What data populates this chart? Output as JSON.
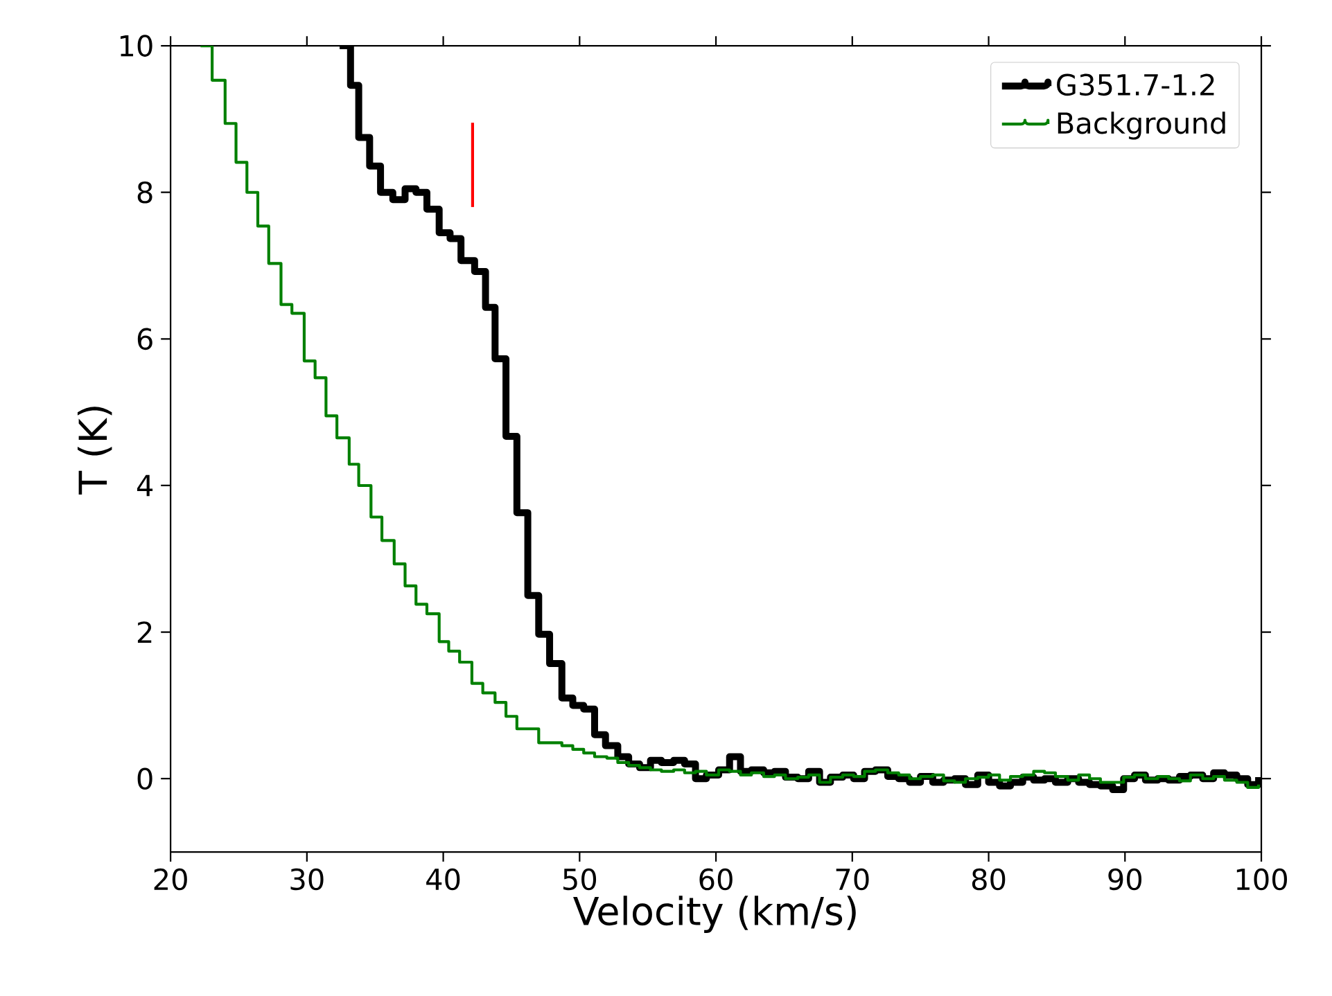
{
  "chart_data": {
    "type": "step",
    "xlabel": "Velocity (km/s)",
    "ylabel": "T (K)",
    "xlim": [
      20,
      100
    ],
    "ylim": [
      -1,
      10
    ],
    "xticks": [
      20,
      30,
      40,
      50,
      60,
      70,
      80,
      90,
      100
    ],
    "yticks": [
      0,
      2,
      4,
      6,
      8,
      10
    ],
    "legend": "top right",
    "series": [
      {
        "name": "G351.7-1.2",
        "color": "#000000",
        "x": [
          32.4,
          33.2,
          33.8,
          34.6,
          35.4,
          36.3,
          37.2,
          38.0,
          38.8,
          39.7,
          40.5,
          41.3,
          42.3,
          43.1,
          43.8,
          44.6,
          45.4,
          46.2,
          47.0,
          47.8,
          48.7,
          49.5,
          50.3,
          51.1,
          51.9,
          52.8,
          53.6,
          54.4,
          55.2,
          56.0,
          56.9,
          57.7,
          58.5,
          59.3,
          60.2,
          61.0,
          61.8,
          62.6,
          63.5,
          64.3,
          65.1,
          66.0,
          66.8,
          67.6,
          68.4,
          69.3,
          70.1,
          70.9,
          71.7,
          72.6,
          73.4,
          74.2,
          75.0,
          75.9,
          76.7,
          77.5,
          78.3,
          79.2,
          80.0,
          80.8,
          81.6,
          82.5,
          83.3,
          84.1,
          84.9,
          85.8,
          86.6,
          87.4,
          88.2,
          89.1,
          89.9,
          90.7,
          91.5,
          92.4,
          93.2,
          94.0,
          94.8,
          95.7,
          96.5,
          97.3,
          98.2,
          99.0,
          99.8
        ],
        "values": [
          10.0,
          9.46,
          8.75,
          8.36,
          8.0,
          7.9,
          8.05,
          8.0,
          7.77,
          7.45,
          7.37,
          7.07,
          6.92,
          6.43,
          5.73,
          4.67,
          3.63,
          2.5,
          1.97,
          1.57,
          1.1,
          1.0,
          0.95,
          0.6,
          0.45,
          0.3,
          0.2,
          0.15,
          0.25,
          0.22,
          0.25,
          0.2,
          0.0,
          0.05,
          0.12,
          0.3,
          0.1,
          0.12,
          0.08,
          0.1,
          0.02,
          0.0,
          0.1,
          -0.05,
          0.02,
          0.05,
          0.0,
          0.1,
          0.12,
          0.03,
          0.0,
          -0.05,
          0.03,
          -0.05,
          -0.02,
          0.0,
          -0.08,
          0.05,
          -0.05,
          -0.1,
          -0.05,
          0.02,
          -0.02,
          0.0,
          -0.05,
          0.0,
          -0.05,
          -0.08,
          -0.1,
          -0.15,
          0.0,
          0.05,
          -0.02,
          0.0,
          -0.02,
          0.03,
          0.05,
          0.0,
          0.08,
          0.05,
          0.0,
          -0.08,
          0.02
        ]
      },
      {
        "name": "Background",
        "color": "#008000",
        "x": [
          22.2,
          23.05,
          24.0,
          24.8,
          25.6,
          26.4,
          27.2,
          28.1,
          28.9,
          29.8,
          30.6,
          31.4,
          32.2,
          33.1,
          33.8,
          34.7,
          35.5,
          36.4,
          37.2,
          38.0,
          38.8,
          39.7,
          40.4,
          41.2,
          42.1,
          42.9,
          43.8,
          44.6,
          45.4,
          47.0,
          48.7,
          49.5,
          50.3,
          51.1,
          52.0,
          52.8,
          53.6,
          54.4,
          55.2,
          56.0,
          56.9,
          57.7,
          58.5,
          59.3,
          60.2,
          61.0,
          61.8,
          62.6,
          63.5,
          64.3,
          65.1,
          66.0,
          66.8,
          67.6,
          68.4,
          69.3,
          70.1,
          70.9,
          71.7,
          72.6,
          73.4,
          74.2,
          75.0,
          75.9,
          76.7,
          77.5,
          78.3,
          79.2,
          80.0,
          80.8,
          81.6,
          82.5,
          83.3,
          84.1,
          84.9,
          85.8,
          86.6,
          87.4,
          88.2,
          89.1,
          89.9,
          90.7,
          91.5,
          92.4,
          93.2,
          94.0,
          94.8,
          95.7,
          96.5,
          97.3,
          98.2,
          99.0,
          99.8
        ],
        "values": [
          10.0,
          9.53,
          8.94,
          8.41,
          8.0,
          7.54,
          7.03,
          6.47,
          6.35,
          5.7,
          5.47,
          4.95,
          4.65,
          4.29,
          4.0,
          3.57,
          3.25,
          2.93,
          2.63,
          2.38,
          2.25,
          1.87,
          1.74,
          1.59,
          1.3,
          1.17,
          1.04,
          0.85,
          0.68,
          0.49,
          0.45,
          0.4,
          0.35,
          0.3,
          0.28,
          0.22,
          0.18,
          0.15,
          0.12,
          0.1,
          0.12,
          0.08,
          0.1,
          0.05,
          0.12,
          0.1,
          0.05,
          0.08,
          0.03,
          0.05,
          0.0,
          0.02,
          0.05,
          -0.05,
          0.02,
          0.05,
          0.03,
          0.1,
          0.12,
          0.08,
          0.05,
          0.0,
          0.03,
          0.05,
          -0.03,
          -0.05,
          0.0,
          0.02,
          0.05,
          -0.02,
          0.03,
          0.05,
          0.1,
          0.08,
          0.03,
          -0.02,
          0.05,
          0.0,
          -0.05,
          -0.05,
          0.02,
          0.05,
          0.0,
          0.03,
          0.0,
          -0.03,
          0.05,
          0.0,
          0.03,
          -0.02,
          -0.05,
          -0.12,
          -0.08
        ]
      },
      {
        "type": "line",
        "color": "#ff0000",
        "x": [
          42.15,
          42.15
        ],
        "values": [
          7.8,
          8.95
        ]
      }
    ]
  }
}
